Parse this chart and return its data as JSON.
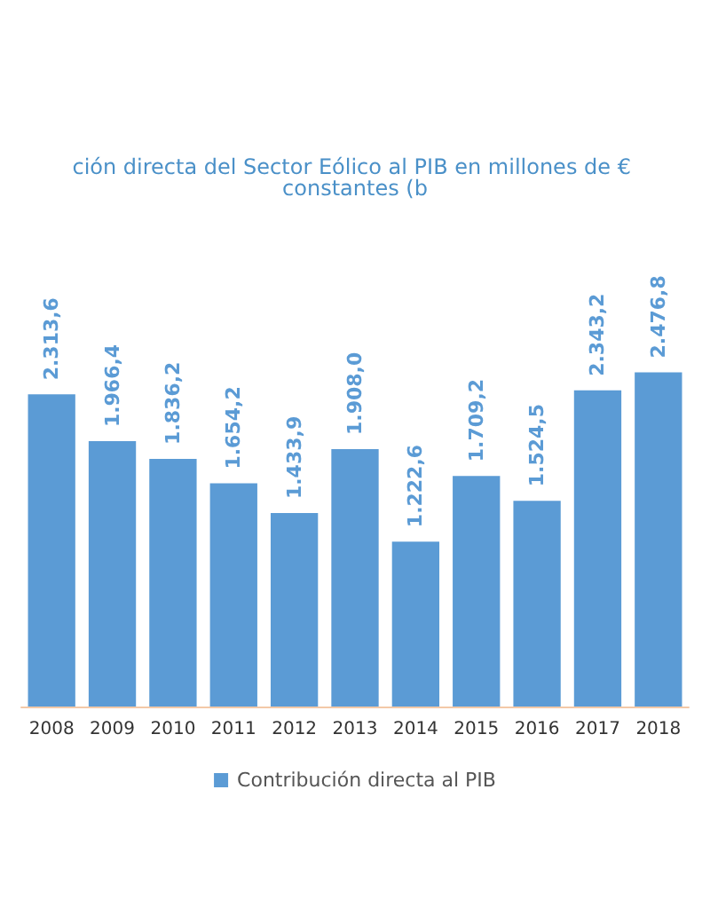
{
  "chart_data": {
    "type": "bar",
    "title": "ción directa del Sector Eólico al PIB en millones de € constantes (b",
    "categories": [
      "2008",
      "2009",
      "2010",
      "2011",
      "2012",
      "2013",
      "2014",
      "2015",
      "2016",
      "2017",
      "2018"
    ],
    "series": [
      {
        "name": "Contribución directa al PIB",
        "color": "#5b9bd5",
        "values": [
          2313.6,
          1966.4,
          1836.2,
          1654.2,
          1433.9,
          1908.0,
          1222.6,
          1709.2,
          1524.5,
          2343.2,
          2476.8
        ],
        "value_labels": [
          "2.313,6",
          "1.966,4",
          "1.836,2",
          "1.654,2",
          "1.433,9",
          "1.908,0",
          "1.222,6",
          "1.709,2",
          "1.524,5",
          "2.343,2",
          "2.476,8"
        ]
      }
    ],
    "legend": "bottom"
  }
}
